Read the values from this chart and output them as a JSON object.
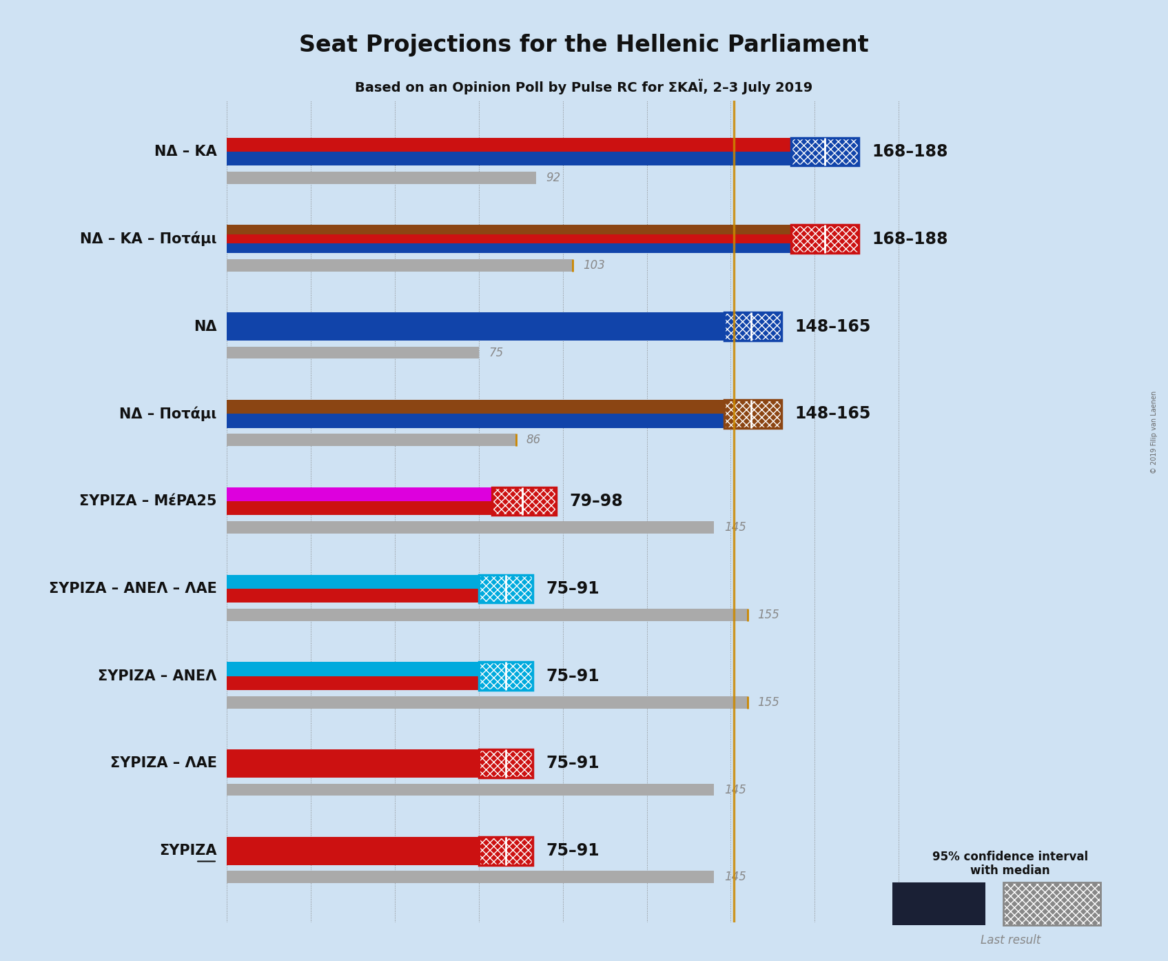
{
  "title": "Seat Projections for the Hellenic Parliament",
  "subtitle": "Based on an Opinion Poll by Pulse RC for ΣΚΑΪ, 2–3 July 2019",
  "copyright": "© 2019 Filip van Laenen",
  "background_color": "#cfe2f3",
  "majority_line": 151,
  "x_max": 220,
  "rows": [
    {
      "label": "ΝΔ – ΚΑ",
      "underline": false,
      "bar_max": 168,
      "ci_low": 168,
      "ci_high": 188,
      "median": 178,
      "last_result": 92,
      "colors": [
        "#1144aa",
        "#cc1111"
      ],
      "range_label": "168–188",
      "hatch_color": "#1144aa"
    },
    {
      "label": "ΝΔ – ΚΑ – Ποτάμι",
      "underline": false,
      "bar_max": 168,
      "ci_low": 168,
      "ci_high": 188,
      "median": 178,
      "last_result": 103,
      "colors": [
        "#1144aa",
        "#cc1111",
        "#8b4513"
      ],
      "range_label": "168–188",
      "hatch_color": "#cc1111"
    },
    {
      "label": "ΝΔ",
      "underline": false,
      "bar_max": 148,
      "ci_low": 148,
      "ci_high": 165,
      "median": 156,
      "last_result": 75,
      "colors": [
        "#1144aa"
      ],
      "range_label": "148–165",
      "hatch_color": "#1144aa"
    },
    {
      "label": "ΝΔ – Ποτάμι",
      "underline": false,
      "bar_max": 148,
      "ci_low": 148,
      "ci_high": 165,
      "median": 156,
      "last_result": 86,
      "colors": [
        "#1144aa",
        "#8b4513"
      ],
      "range_label": "148–165",
      "hatch_color": "#8b4513"
    },
    {
      "label": "ΣΥΡΙΖΑ – ΜέPA25",
      "underline": false,
      "bar_max": 79,
      "ci_low": 79,
      "ci_high": 98,
      "median": 88,
      "last_result": 145,
      "colors": [
        "#cc1111",
        "#dd00dd"
      ],
      "range_label": "79–98",
      "hatch_color": "#cc1111"
    },
    {
      "label": "ΣΥΡΙΖΑ – ΑΝΕΛ – ΛΑΕ",
      "underline": false,
      "bar_max": 75,
      "ci_low": 75,
      "ci_high": 91,
      "median": 83,
      "last_result": 155,
      "colors": [
        "#cc1111",
        "#00aadd"
      ],
      "range_label": "75–91",
      "hatch_color": "#00aadd"
    },
    {
      "label": "ΣΥΡΙΖΑ – ΑΝΕΛ",
      "underline": false,
      "bar_max": 75,
      "ci_low": 75,
      "ci_high": 91,
      "median": 83,
      "last_result": 155,
      "colors": [
        "#cc1111",
        "#00aadd"
      ],
      "range_label": "75–91",
      "hatch_color": "#00aadd"
    },
    {
      "label": "ΣΥΡΙΖΑ – ΛΑΕ",
      "underline": false,
      "bar_max": 75,
      "ci_low": 75,
      "ci_high": 91,
      "median": 83,
      "last_result": 145,
      "colors": [
        "#cc1111"
      ],
      "range_label": "75–91",
      "hatch_color": "#cc1111"
    },
    {
      "label": "ΣΥΡΙΖΑ",
      "underline": true,
      "bar_max": 75,
      "ci_low": 75,
      "ci_high": 91,
      "median": 83,
      "last_result": 145,
      "colors": [
        "#cc1111"
      ],
      "range_label": "75–91",
      "hatch_color": "#cc1111"
    }
  ]
}
